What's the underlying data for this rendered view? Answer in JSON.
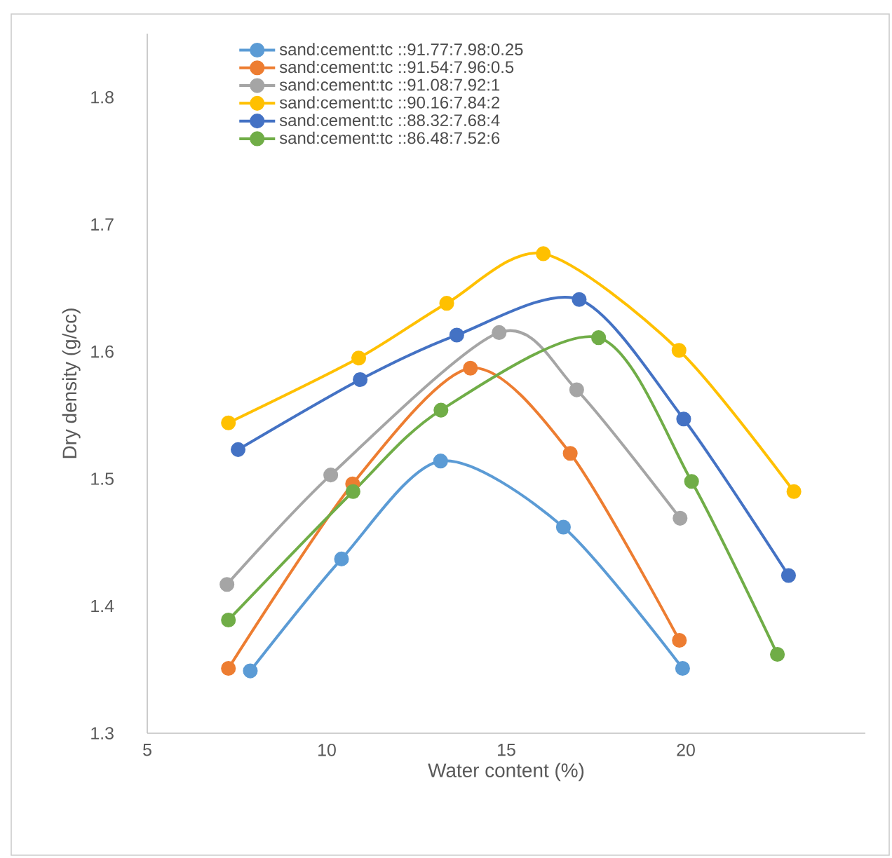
{
  "chart_data": {
    "type": "line",
    "xlabel": "Water content (%)",
    "ylabel": "Dry density (g/cc)",
    "xlim": [
      5,
      25
    ],
    "xticks": [
      5,
      10,
      15,
      20
    ],
    "ylim": [
      1.3,
      1.85
    ],
    "yticks": [
      1.3,
      1.4,
      1.5,
      1.6,
      1.7,
      1.8
    ],
    "grid": false,
    "legend": "top",
    "marker": "circle",
    "line_style": "solid",
    "series": [
      {
        "name": "sand:cement:tc ::91.77:7.98:0.25",
        "color": "#5b9bd5",
        "x": [
          7.87,
          10.41,
          13.17,
          16.59,
          19.91
        ],
        "values": [
          1.349,
          1.437,
          1.514,
          1.462,
          1.351
        ]
      },
      {
        "name": "sand:cement:tc ::91.54:7.96:0.5",
        "color": "#ed7d31",
        "x": [
          7.26,
          10.72,
          14.0,
          16.78,
          19.82
        ],
        "values": [
          1.351,
          1.496,
          1.587,
          1.52,
          1.373
        ]
      },
      {
        "name": "sand:cement:tc ::91.08:7.92:1",
        "color": "#a5a5a5",
        "x": [
          7.22,
          10.11,
          14.8,
          16.96,
          19.84
        ],
        "values": [
          1.417,
          1.503,
          1.615,
          1.57,
          1.469
        ]
      },
      {
        "name": "sand:cement:tc ::90.16:7.84:2",
        "color": "#ffc000",
        "x": [
          7.26,
          10.89,
          13.34,
          16.03,
          19.81,
          23.01
        ],
        "values": [
          1.544,
          1.595,
          1.638,
          1.677,
          1.601,
          1.49
        ]
      },
      {
        "name": "sand:cement:tc ::88.32:7.68:4",
        "color": "#4472c4",
        "x": [
          7.53,
          10.93,
          13.62,
          17.03,
          19.94,
          22.86
        ],
        "values": [
          1.523,
          1.578,
          1.613,
          1.641,
          1.547,
          1.424
        ]
      },
      {
        "name": "sand:cement:tc ::86.48:7.52:6",
        "color": "#70ad47",
        "x": [
          7.26,
          10.73,
          13.18,
          17.57,
          20.16,
          22.55
        ],
        "values": [
          1.389,
          1.49,
          1.554,
          1.611,
          1.498,
          1.362
        ]
      }
    ]
  }
}
